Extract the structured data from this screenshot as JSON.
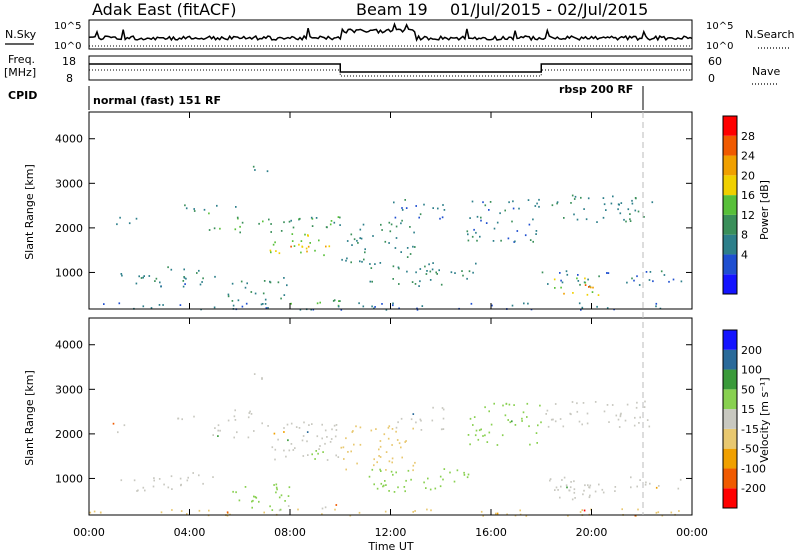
{
  "header": {
    "station": "Adak East (fitACF)",
    "beam": "Beam 19",
    "dates": "01/Jul/2015 - 02/Jul/2015"
  },
  "aux": {
    "nsky_label": "N.Sky",
    "nsky_ticks": [
      "10^5",
      "10^0"
    ],
    "nsearch_label": "N.Search",
    "freq_label_top": "Freq.",
    "freq_label_unit": "[MHz]",
    "freq_ticks": [
      "18",
      "8"
    ],
    "nave_label": "Nave",
    "nave_ticks": [
      "60",
      "0"
    ],
    "cpid_label": "CPID",
    "cpid_segments": [
      "normal (fast) 151 RF",
      "rbsp 200 RF"
    ]
  },
  "colors": {
    "power": [
      "#1414ff",
      "#1f4fd0",
      "#2d7f8a",
      "#3a8f5a",
      "#58c03a",
      "#f0d000",
      "#f0a000",
      "#f05a00",
      "#ff0000"
    ],
    "velocity": [
      "#ff0000",
      "#f05a00",
      "#f0a000",
      "#e8c870",
      "#c8c8c0",
      "#88d050",
      "#3a9a3a",
      "#2a6a9a",
      "#1414ff"
    ],
    "axis": "#000000",
    "dashed_marker": "#bbbbbb"
  },
  "chart_data": [
    {
      "type": "heatmap",
      "title": "Power",
      "ylabel": "Slant Range [km]",
      "xlabel": "Time UT",
      "xlim": [
        "00:00",
        "24:00"
      ],
      "ylim": [
        180,
        4600
      ],
      "x_ticks": [
        "00:00",
        "04:00",
        "08:00",
        "12:00",
        "16:00",
        "20:00",
        "00:00"
      ],
      "y_ticks": [
        1000,
        2000,
        3000,
        4000
      ],
      "colorbar": {
        "label": "Power [dB]",
        "ticks": [
          "28",
          "24",
          "20",
          "16",
          "12",
          "8",
          "4"
        ]
      },
      "regions": [
        {
          "t0": 0.8,
          "t1": 2.0,
          "r0": 2050,
          "r1": 2300,
          "value": 8
        },
        {
          "t0": 1.2,
          "t1": 5.0,
          "r0": 700,
          "r1": 1150,
          "value": 10
        },
        {
          "t0": 3.5,
          "t1": 6.5,
          "r0": 2350,
          "r1": 2550,
          "value": 10
        },
        {
          "t0": 4.5,
          "t1": 10.0,
          "r0": 1900,
          "r1": 2350,
          "value": 14
        },
        {
          "t0": 7.0,
          "t1": 10.0,
          "r0": 1400,
          "r1": 1900,
          "value": 20
        },
        {
          "t0": 8.0,
          "t1": 9.5,
          "r0": 1450,
          "r1": 1650,
          "value": 26
        },
        {
          "t0": 6.5,
          "t1": 7.2,
          "r0": 3200,
          "r1": 3400,
          "value": 10
        },
        {
          "t0": 5.5,
          "t1": 8.0,
          "r0": 300,
          "r1": 900,
          "value": 12
        },
        {
          "t0": 7.5,
          "t1": 10.0,
          "r0": 250,
          "r1": 450,
          "value": 16
        },
        {
          "t0": 10.0,
          "t1": 13.0,
          "r0": 1200,
          "r1": 2200,
          "value": 12
        },
        {
          "t0": 12.0,
          "t1": 14.2,
          "r0": 2100,
          "r1": 2650,
          "value": 10
        },
        {
          "t0": 11.0,
          "t1": 15.5,
          "r0": 700,
          "r1": 1250,
          "value": 12
        },
        {
          "t0": 15.0,
          "t1": 18.0,
          "r0": 1700,
          "r1": 2700,
          "value": 10
        },
        {
          "t0": 18.0,
          "t1": 22.5,
          "r0": 2150,
          "r1": 2750,
          "value": 12
        },
        {
          "t0": 18.0,
          "t1": 23.8,
          "r0": 700,
          "r1": 1050,
          "value": 10
        },
        {
          "t0": 18.5,
          "t1": 20.5,
          "r0": 500,
          "r1": 900,
          "value": 22
        },
        {
          "t0": 19.2,
          "t1": 20.2,
          "r0": 550,
          "r1": 750,
          "value": 27
        },
        {
          "t0": 0.0,
          "t1": 24.0,
          "r0": 180,
          "r1": 330,
          "value": 8
        }
      ]
    },
    {
      "type": "heatmap",
      "title": "Velocity",
      "ylabel": "Slant Range [km]",
      "xlabel": "Time UT",
      "xlim": [
        "00:00",
        "24:00"
      ],
      "ylim": [
        180,
        4600
      ],
      "x_ticks": [
        "00:00",
        "04:00",
        "08:00",
        "12:00",
        "16:00",
        "20:00",
        "00:00"
      ],
      "y_ticks": [
        1000,
        2000,
        3000,
        4000
      ],
      "colorbar": {
        "label": "Velocity [m s⁻¹]",
        "ticks": [
          "200",
          "100",
          "50",
          "15",
          "-15",
          "-50",
          "-100",
          "-200"
        ]
      },
      "regions": [
        {
          "t0": 0.8,
          "t1": 2.0,
          "r0": 2050,
          "r1": 2300,
          "value": 0
        },
        {
          "t0": 1.2,
          "t1": 5.0,
          "r0": 700,
          "r1": 1150,
          "value": 0
        },
        {
          "t0": 3.5,
          "t1": 6.5,
          "r0": 2350,
          "r1": 2550,
          "value": 0
        },
        {
          "t0": 4.5,
          "t1": 10.0,
          "r0": 1900,
          "r1": 2350,
          "value": 0
        },
        {
          "t0": 7.0,
          "t1": 10.0,
          "r0": 1400,
          "r1": 1900,
          "value": 0
        },
        {
          "t0": 8.0,
          "t1": 9.5,
          "r0": 1450,
          "r1": 1650,
          "value": 30
        },
        {
          "t0": 6.5,
          "t1": 7.2,
          "r0": 3200,
          "r1": 3400,
          "value": 0
        },
        {
          "t0": 5.5,
          "t1": 8.0,
          "r0": 300,
          "r1": 900,
          "value": 30
        },
        {
          "t0": 7.5,
          "t1": 10.0,
          "r0": 250,
          "r1": 450,
          "value": 0
        },
        {
          "t0": 10.0,
          "t1": 13.0,
          "r0": 1200,
          "r1": 2200,
          "value": -30
        },
        {
          "t0": 12.0,
          "t1": 14.2,
          "r0": 2100,
          "r1": 2650,
          "value": 0
        },
        {
          "t0": 11.0,
          "t1": 15.5,
          "r0": 700,
          "r1": 1250,
          "value": 35
        },
        {
          "t0": 15.0,
          "t1": 18.0,
          "r0": 1700,
          "r1": 2700,
          "value": 30
        },
        {
          "t0": 18.0,
          "t1": 22.5,
          "r0": 2150,
          "r1": 2750,
          "value": 0
        },
        {
          "t0": 18.0,
          "t1": 23.8,
          "r0": 700,
          "r1": 1050,
          "value": 0
        },
        {
          "t0": 18.5,
          "t1": 20.5,
          "r0": 500,
          "r1": 900,
          "value": 0
        },
        {
          "t0": 19.2,
          "t1": 20.2,
          "r0": 550,
          "r1": 750,
          "value": 0
        },
        {
          "t0": 0.0,
          "t1": 24.0,
          "r0": 180,
          "r1": 330,
          "value": -30
        }
      ]
    }
  ]
}
